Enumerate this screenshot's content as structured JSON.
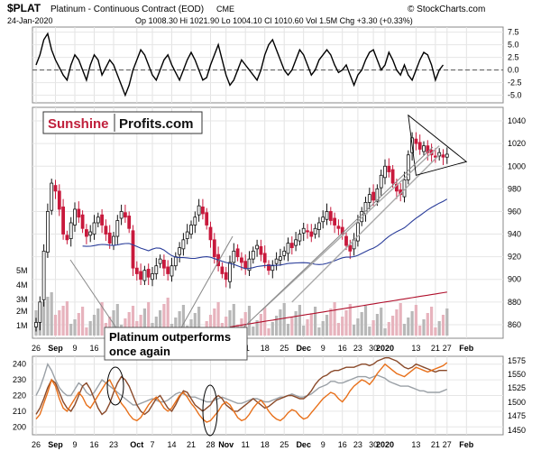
{
  "header": {
    "symbol": "$PLAT",
    "description": "Platinum - Continuous Contract (EOD)",
    "exchange": "CME",
    "watermark": "© StockCharts.com",
    "date": "24-Jan-2020",
    "ohlc": "Op 1008.30  Hi 1021.90  Lo 1004.10  Cl 1010.60  Vol 1.5M  Chg +3.30 (+0.33%)"
  },
  "logo": {
    "part1": "Sunshine",
    "part2": "Profits.com"
  },
  "annotation": {
    "line1": "Platinum outperforms",
    "line2": "once again"
  },
  "colors": {
    "up": "#111111",
    "down": "#c8193c",
    "ma50": "#2a3d9a",
    "ma200": "#b0102c",
    "orange": "#e8701a",
    "brown": "#8a4a2a",
    "gray": "#9aa0a6"
  },
  "x_axis": [
    {
      "label": "26",
      "d": 0
    },
    {
      "label": "Sep",
      "d": 5,
      "bold": true
    },
    {
      "label": "9",
      "d": 10
    },
    {
      "label": "16",
      "d": 15
    },
    {
      "label": "23",
      "d": 20
    },
    {
      "label": "Oct",
      "d": 26,
      "bold": true
    },
    {
      "label": "7",
      "d": 30
    },
    {
      "label": "14",
      "d": 35
    },
    {
      "label": "21",
      "d": 40
    },
    {
      "label": "28",
      "d": 45
    },
    {
      "label": "Nov",
      "d": 49,
      "bold": true
    },
    {
      "label": "11",
      "d": 54
    },
    {
      "label": "18",
      "d": 59
    },
    {
      "label": "25",
      "d": 64
    },
    {
      "label": "Dec",
      "d": 69,
      "bold": true
    },
    {
      "label": "9",
      "d": 74
    },
    {
      "label": "16",
      "d": 79
    },
    {
      "label": "23",
      "d": 83
    },
    {
      "label": "30",
      "d": 87
    },
    {
      "label": "2020",
      "d": 90,
      "bold": true
    },
    {
      "label": "13",
      "d": 98
    },
    {
      "label": "21",
      "d": 103
    },
    {
      "label": "27",
      "d": 106
    },
    {
      "label": "Feb",
      "d": 111,
      "bold": true
    }
  ],
  "chart_data": [
    {
      "type": "line",
      "name": "oscillator-panel",
      "yticks": [
        "7.5",
        "5.0",
        "2.5",
        "0.0",
        "-2.5",
        "-5.0"
      ],
      "ylim": [
        -6.5,
        8.5
      ],
      "values": [
        1,
        3,
        6,
        7.2,
        4,
        2,
        0.5,
        -1,
        -2,
        1,
        3,
        2,
        0,
        -2,
        1,
        3,
        2,
        -1,
        0.5,
        2,
        1,
        -1,
        -3,
        -5,
        -3,
        0,
        2,
        4,
        3,
        1,
        -1,
        -2,
        0,
        2,
        3,
        1,
        -0.5,
        -2,
        0,
        2,
        3.5,
        2,
        0,
        -2,
        -1.5,
        1,
        3,
        5,
        2,
        -1,
        -3,
        -2,
        0,
        2,
        1,
        0,
        -1,
        -2,
        0,
        3,
        5,
        6,
        4,
        2,
        0,
        -1,
        0,
        2,
        4,
        3,
        1,
        -1,
        0,
        2,
        3,
        4,
        3,
        1,
        -0.5,
        0,
        1,
        -1,
        -3,
        -1,
        0,
        2,
        3.5,
        4,
        2,
        0,
        1,
        3.5,
        2,
        0,
        -1,
        1,
        -1,
        -2,
        0,
        2,
        3.5,
        3,
        1,
        -2,
        0,
        1
      ]
    },
    {
      "type": "candlestick",
      "name": "price-panel",
      "yticks": [
        "1040",
        "1020",
        "1000",
        "980",
        "960",
        "940",
        "920",
        "900",
        "880",
        "860"
      ],
      "ylim": [
        848,
        1052
      ],
      "volume_yticks": [
        "5M",
        "4M",
        "3M",
        "2M",
        "1M"
      ],
      "pattern_annotations": [
        "triangle"
      ]
    },
    {
      "type": "line",
      "name": "comparison-panel",
      "yticks_left": [
        "240",
        "230",
        "220",
        "210",
        "200"
      ],
      "yticks_right": [
        "1575",
        "1550",
        "1525",
        "1500",
        "1475",
        "1450"
      ],
      "series_orange": [
        205,
        208,
        215,
        222,
        230,
        226,
        218,
        212,
        210,
        214,
        218,
        222,
        219,
        214,
        212,
        216,
        220,
        224,
        228,
        230,
        225,
        220,
        215,
        212,
        208,
        205,
        204,
        206,
        210,
        214,
        217,
        219,
        216,
        212,
        210,
        212,
        216,
        220,
        222,
        219,
        215,
        212,
        208,
        205,
        203,
        204,
        207,
        210,
        214,
        216,
        214,
        210,
        206,
        204,
        205,
        208,
        212,
        215,
        217,
        214,
        210,
        207,
        205,
        204,
        206,
        209,
        211,
        210,
        207,
        205,
        206,
        209,
        212,
        215,
        218,
        220,
        222,
        221,
        218,
        216,
        219,
        223,
        226,
        228,
        230,
        229,
        227,
        230,
        234,
        237,
        240,
        238,
        236,
        234,
        233,
        232,
        234,
        236,
        238,
        237,
        236,
        235,
        236,
        237,
        238,
        239,
        241
      ],
      "series_brown": [
        208,
        212,
        218,
        225,
        230,
        228,
        222,
        216,
        212,
        210,
        214,
        220,
        226,
        228,
        224,
        218,
        212,
        208,
        210,
        215,
        222,
        228,
        232,
        230,
        226,
        220,
        214,
        210,
        208,
        210,
        214,
        218,
        220,
        216,
        212,
        210,
        214,
        219,
        223,
        222,
        218,
        214,
        212,
        210,
        212,
        214,
        218,
        220,
        218,
        214,
        212,
        210,
        210,
        212,
        214,
        216,
        218,
        216,
        214,
        212,
        213,
        215,
        217,
        218,
        219,
        220,
        220,
        219,
        218,
        218,
        220,
        223,
        227,
        230,
        232,
        233,
        235,
        236,
        236,
        237,
        238,
        238,
        238,
        239,
        240,
        240,
        239,
        240,
        242,
        243,
        244,
        244,
        243,
        242,
        240,
        238,
        237,
        238,
        240,
        239,
        238,
        237,
        236,
        235,
        236,
        236,
        236
      ],
      "series_gray": [
        220,
        225,
        232,
        240,
        236,
        230,
        225,
        222,
        220,
        220,
        224,
        228,
        226,
        222,
        220,
        222,
        226,
        230,
        228,
        226,
        224,
        222,
        220,
        218,
        216,
        214,
        214,
        215,
        216,
        217,
        218,
        217,
        216,
        216,
        217,
        219,
        221,
        222,
        221,
        220,
        219,
        219,
        218,
        217,
        216,
        216,
        217,
        218,
        219,
        218,
        217,
        216,
        215,
        215,
        216,
        217,
        218,
        218,
        217,
        216,
        216,
        217,
        218,
        219,
        219,
        220,
        221,
        220,
        219,
        219,
        220,
        221,
        223,
        225,
        226,
        227,
        229,
        229,
        228,
        228,
        229,
        230,
        231,
        232,
        232,
        232,
        231,
        232,
        233,
        232,
        231,
        229,
        228,
        227,
        226,
        226,
        226,
        225,
        224,
        223,
        223,
        222,
        222,
        222,
        222,
        223,
        224
      ]
    }
  ]
}
